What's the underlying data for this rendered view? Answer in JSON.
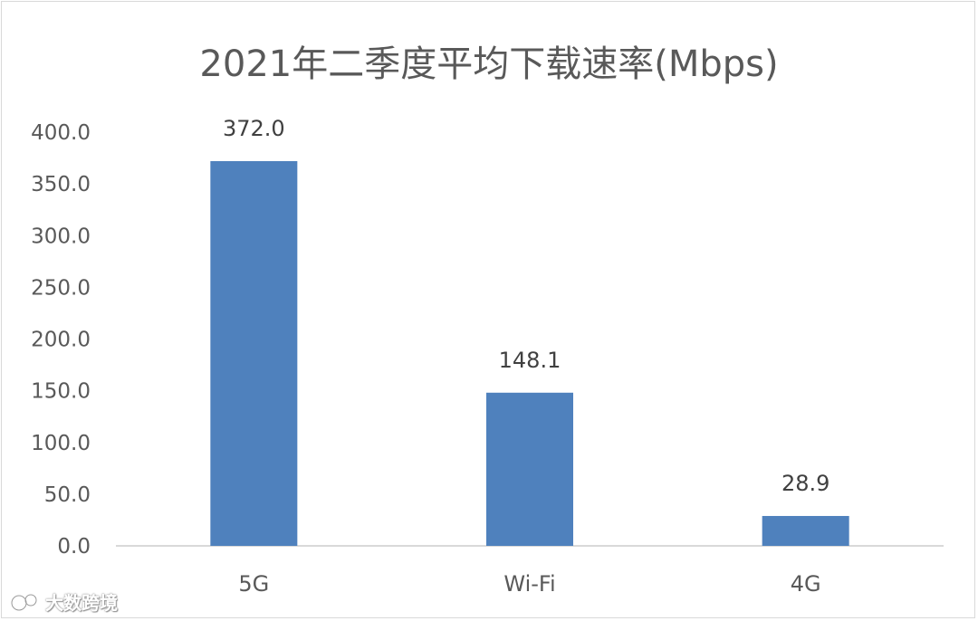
{
  "chart_data": {
    "type": "bar",
    "title": "2021年二季度平均下载速率(Mbps)",
    "categories": [
      "5G",
      "Wi-Fi",
      "4G"
    ],
    "values": [
      372.0,
      148.1,
      28.9
    ],
    "data_labels": [
      "372.0",
      "148.1",
      "28.9"
    ],
    "ylim": [
      0,
      400
    ],
    "yticks": [
      "0.0",
      "50.0",
      "100.0",
      "150.0",
      "200.0",
      "250.0",
      "300.0",
      "350.0",
      "400.0"
    ],
    "xlabel": "",
    "ylabel": "",
    "grid": false,
    "bar_color": "#4f81bd"
  },
  "watermark": {
    "text": "大数跨境",
    "icon": "brand-logo-icon"
  }
}
